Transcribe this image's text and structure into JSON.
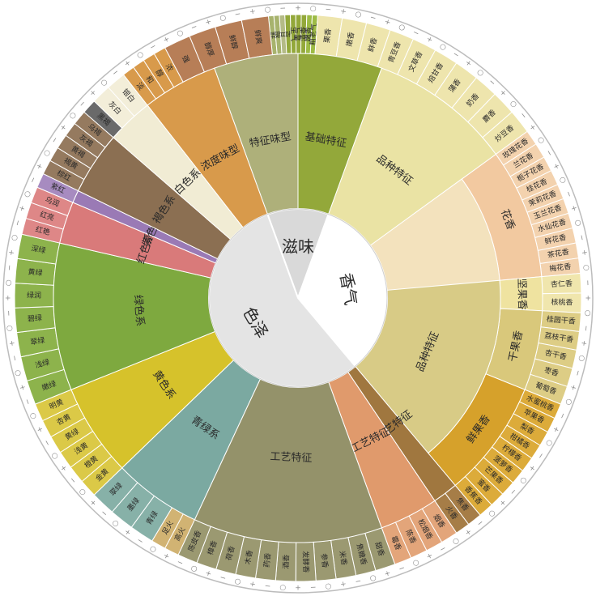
{
  "wheel": {
    "core": [
      {
        "id": "taste",
        "label": "滋味",
        "color": "#d9d9d9"
      },
      {
        "id": "aroma",
        "label": "香气",
        "color": "#ffffff"
      },
      {
        "id": "color",
        "label": "色泽",
        "color": "#e4e4e4"
      }
    ],
    "subcategories": [
      {
        "core": "taste",
        "label": "基础特征",
        "color": "#93a83a"
      },
      {
        "core": "taste",
        "label": "特征味型",
        "color": "#aeb07a"
      },
      {
        "core": "taste",
        "label": "浓度味型",
        "color": "#d89a4b"
      },
      {
        "core": "taste",
        "label": "醇爽味型",
        "color": "#b77e57"
      },
      {
        "core": "aroma",
        "label": "品种特征",
        "color": "#eae3a4"
      },
      {
        "core": "aroma",
        "label": "品种特征",
        "color": "#f3e2bd"
      },
      {
        "core": "aroma",
        "label": "品种特征",
        "color": "#d8cb86"
      },
      {
        "core": "aroma",
        "label": "工艺特征",
        "color": "#a0773f"
      },
      {
        "core": "aroma",
        "label": "工艺特征",
        "color": "#e09a6c"
      },
      {
        "core": "aroma",
        "label": "工艺特征",
        "color": "#94926a"
      },
      {
        "core": "color",
        "label": "青绿系",
        "color": "#7ba9a1"
      },
      {
        "core": "color",
        "label": "黄色系",
        "color": "#d6c22b"
      },
      {
        "core": "color",
        "label": "绿色系",
        "color": "#7ea93f"
      },
      {
        "core": "color",
        "label": "红色系",
        "color": "#d97a7a"
      },
      {
        "core": "color",
        "label": "紫色系",
        "color": "#9a7ab5"
      },
      {
        "core": "color",
        "label": "褐色系",
        "color": "#8b6f52"
      },
      {
        "core": "color",
        "label": "白色系",
        "color": "#f1ecd4"
      }
    ],
    "groups": [
      {
        "label": "花香",
        "color": "#f2c9a0"
      },
      {
        "label": "坚果香",
        "color": "#efe3a0"
      },
      {
        "label": "干果香",
        "color": "#d9c87b"
      },
      {
        "label": "鲜果香",
        "color": "#d6a12b"
      }
    ],
    "leaves": [
      {
        "label": "鲜",
        "color": "#a7b36d"
      },
      {
        "label": "酸",
        "color": "#a7b36d"
      },
      {
        "label": "甘",
        "color": "#b4bb86"
      },
      {
        "label": "苦",
        "color": "#93a83a"
      },
      {
        "label": "生气",
        "color": "#93a83a"
      },
      {
        "label": "青气",
        "color": "#93a83a"
      },
      {
        "label": "清香",
        "color": "#93a83a"
      },
      {
        "label": "嫩香",
        "color": "#9dbb45"
      },
      {
        "label": "粗老气",
        "color": "#9dbb45"
      },
      {
        "label": "栗香",
        "color": "#eee5ad"
      },
      {
        "label": "嫩香",
        "color": "#eee5ad"
      },
      {
        "label": "鲜香",
        "color": "#eee5ad"
      },
      {
        "label": "青豆香",
        "color": "#eee5ad"
      },
      {
        "label": "文草香",
        "color": "#eee5ad"
      },
      {
        "label": "焙甘香",
        "color": "#eee5ad"
      },
      {
        "label": "蒲香",
        "color": "#eee5ad"
      },
      {
        "label": "奶香",
        "color": "#eee5ad"
      },
      {
        "label": "麝香",
        "color": "#eee5ad"
      },
      {
        "label": "炒豆香",
        "color": "#eee5ad"
      },
      {
        "label": "玫瑰花香",
        "color": "#f3d2ae"
      },
      {
        "label": "兰花香",
        "color": "#f3d2ae"
      },
      {
        "label": "栀子花香",
        "color": "#f3d2ae"
      },
      {
        "label": "桂花香",
        "color": "#f3d2ae"
      },
      {
        "label": "茉莉花香",
        "color": "#f3d2ae"
      },
      {
        "label": "玉兰花香",
        "color": "#f3d2ae"
      },
      {
        "label": "水仙花香",
        "color": "#f3d2ae"
      },
      {
        "label": "鲜花香",
        "color": "#f3d2ae"
      },
      {
        "label": "茶花香",
        "color": "#f3d2ae"
      },
      {
        "label": "梅花香",
        "color": "#f3d2ae"
      },
      {
        "label": "杏仁香",
        "color": "#f0e6ad"
      },
      {
        "label": "核桃香",
        "color": "#f0e6ad"
      },
      {
        "label": "桂圆干香",
        "color": "#ddcd85"
      },
      {
        "label": "荔枝干香",
        "color": "#ddcd85"
      },
      {
        "label": "杏干香",
        "color": "#ddcd85"
      },
      {
        "label": "枣香",
        "color": "#ddcd85"
      },
      {
        "label": "葡萄香",
        "color": "#ddcd85"
      },
      {
        "label": "水蜜桃香",
        "color": "#dcab3a"
      },
      {
        "label": "苹果香",
        "color": "#dcab3a"
      },
      {
        "label": "梨香",
        "color": "#dcab3a"
      },
      {
        "label": "柑橘香",
        "color": "#dcab3a"
      },
      {
        "label": "柠檬香",
        "color": "#dcab3a"
      },
      {
        "label": "菠萝香",
        "color": "#dcab3a"
      },
      {
        "label": "芒果香",
        "color": "#dcab3a"
      },
      {
        "label": "蜜香",
        "color": "#dcab3a"
      },
      {
        "label": "香蕉香",
        "color": "#dcab3a"
      },
      {
        "label": "焦香",
        "color": "#a67d47"
      },
      {
        "label": "火香",
        "color": "#a67d47"
      },
      {
        "label": "烟香",
        "color": "#e3a57a"
      },
      {
        "label": "松烟香",
        "color": "#e3a57a"
      },
      {
        "label": "陈香",
        "color": "#e3a57a"
      },
      {
        "label": "霉香",
        "color": "#e3a57a"
      },
      {
        "label": "甜香",
        "color": "#9b9971"
      },
      {
        "label": "焦糖香",
        "color": "#9b9971"
      },
      {
        "label": "米香",
        "color": "#9b9971"
      },
      {
        "label": "参香",
        "color": "#9b9971"
      },
      {
        "label": "发酵香",
        "color": "#9b9971"
      },
      {
        "label": "酒香",
        "color": "#9b9971"
      },
      {
        "label": "药香",
        "color": "#9b9971"
      },
      {
        "label": "木香",
        "color": "#9b9971"
      },
      {
        "label": "荷香",
        "color": "#9b9971"
      },
      {
        "label": "樟香",
        "color": "#9b9971"
      },
      {
        "label": "陈皮香",
        "color": "#9b9971"
      },
      {
        "label": "高火",
        "color": "#d1b373"
      },
      {
        "label": "足火",
        "color": "#d1b373"
      },
      {
        "label": "青绿",
        "color": "#87b1a8"
      },
      {
        "label": "墨绿",
        "color": "#87b1a8"
      },
      {
        "label": "翠绿",
        "color": "#87b1a8"
      },
      {
        "label": "金黄",
        "color": "#dbc947"
      },
      {
        "label": "橙黄",
        "color": "#dbc947"
      },
      {
        "label": "浅黄",
        "color": "#dbc947"
      },
      {
        "label": "黄绿",
        "color": "#dbc947"
      },
      {
        "label": "杏黄",
        "color": "#dbc947"
      },
      {
        "label": "明黄",
        "color": "#dbc947"
      },
      {
        "label": "嫩绿",
        "color": "#8db34c"
      },
      {
        "label": "浅绿",
        "color": "#8db34c"
      },
      {
        "label": "翠绿",
        "color": "#8db34c"
      },
      {
        "label": "碧绿",
        "color": "#8db34c"
      },
      {
        "label": "绿润",
        "color": "#8db34c"
      },
      {
        "label": "黄绿",
        "color": "#8db34c"
      },
      {
        "label": "深绿",
        "color": "#8db34c"
      },
      {
        "label": "红艳",
        "color": "#de8787"
      },
      {
        "label": "红亮",
        "color": "#de8787"
      },
      {
        "label": "乌润",
        "color": "#de8787"
      },
      {
        "label": "紫红",
        "color": "#a78bc0"
      },
      {
        "label": "棕红",
        "color": "#957a5f"
      },
      {
        "label": "褐黄",
        "color": "#957a5f"
      },
      {
        "label": "黄褐",
        "color": "#957a5f"
      },
      {
        "label": "灰褐",
        "color": "#957a5f"
      },
      {
        "label": "乌褐",
        "color": "#957a5f"
      },
      {
        "label": "黑褐",
        "color": "#6a6a6a"
      },
      {
        "label": "灰白",
        "color": "#f3eed9"
      },
      {
        "label": "银白",
        "color": "#f3eed9"
      },
      {
        "label": "淡",
        "color": "#d89a4b"
      },
      {
        "label": "和",
        "color": "#d89a4b"
      },
      {
        "label": "醇",
        "color": "#d89a4b"
      },
      {
        "label": "浓",
        "color": "#d89a4b"
      },
      {
        "label": "强",
        "color": "#b77e57"
      },
      {
        "label": "醇厚",
        "color": "#b77e57"
      },
      {
        "label": "鲜醇",
        "color": "#b77e57"
      },
      {
        "label": "鲜爽",
        "color": "#b77e57"
      }
    ],
    "scale_marks": [
      "+",
      "○",
      "−"
    ]
  }
}
